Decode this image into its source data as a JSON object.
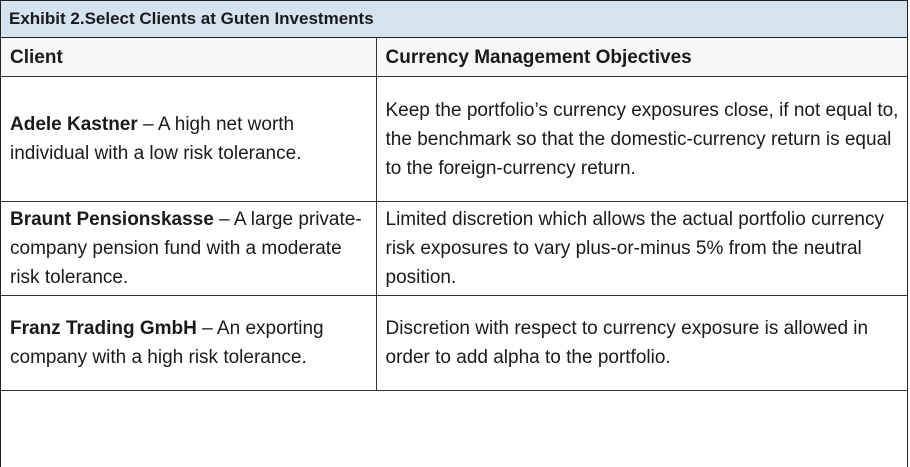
{
  "exhibit": {
    "title": "Exhibit 2.Select Clients at Guten Investments"
  },
  "table": {
    "headers": {
      "client": "Client",
      "objectives": "Currency Management Objectives"
    },
    "rows": [
      {
        "name": "Adele Kastner",
        "description": " – A high net worth individual with a low risk tolerance.",
        "objective": "Keep the portfolio’s currency exposures close, if not equal to, the benchmark so that the domestic-currency return is equal to the foreign-currency return."
      },
      {
        "name": "Braunt Pensionskasse",
        "description": " – A large private-company pension fund with a moderate risk tolerance.",
        "objective": "Limited discretion which allows the actual portfolio currency risk exposures to vary plus-or-minus 5% from the neutral position."
      },
      {
        "name": "Franz Trading GmbH",
        "description": " – An exporting company with a high risk tolerance.",
        "objective": "Discretion with respect to currency exposure is allowed in order to add alpha to the portfolio."
      }
    ]
  }
}
